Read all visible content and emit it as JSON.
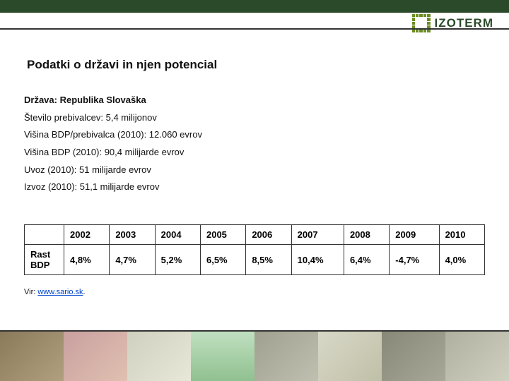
{
  "logo_text": "IZOTERM",
  "title": "Podatki o državi in njen potencial",
  "facts": {
    "country_label": "Država: Republika Slovaška",
    "population": "Število prebivalcev: 5,4 milijonov",
    "gdp_per_capita": "Višina BDP/prebivalca (2010): 12.060 evrov",
    "gdp": "Višina BDP (2010): 90,4 milijarde evrov",
    "import": "Uvoz (2010): 51 milijarde evrov",
    "export": "Izvoz (2010): 51,1 milijarde evrov"
  },
  "table": {
    "row_label": "Rast BDP",
    "headers": [
      "2002",
      "2003",
      "2004",
      "2005",
      "2006",
      "2007",
      "2008",
      "2009",
      "2010"
    ],
    "values": [
      "4,8%",
      "4,7%",
      "5,2%",
      "6,5%",
      "8,5%",
      "10,4%",
      "6,4%",
      "-4,7%",
      "4,0%"
    ]
  },
  "source_prefix": "Vir: ",
  "source_link_text": "www.sario.sk",
  "source_suffix": "."
}
